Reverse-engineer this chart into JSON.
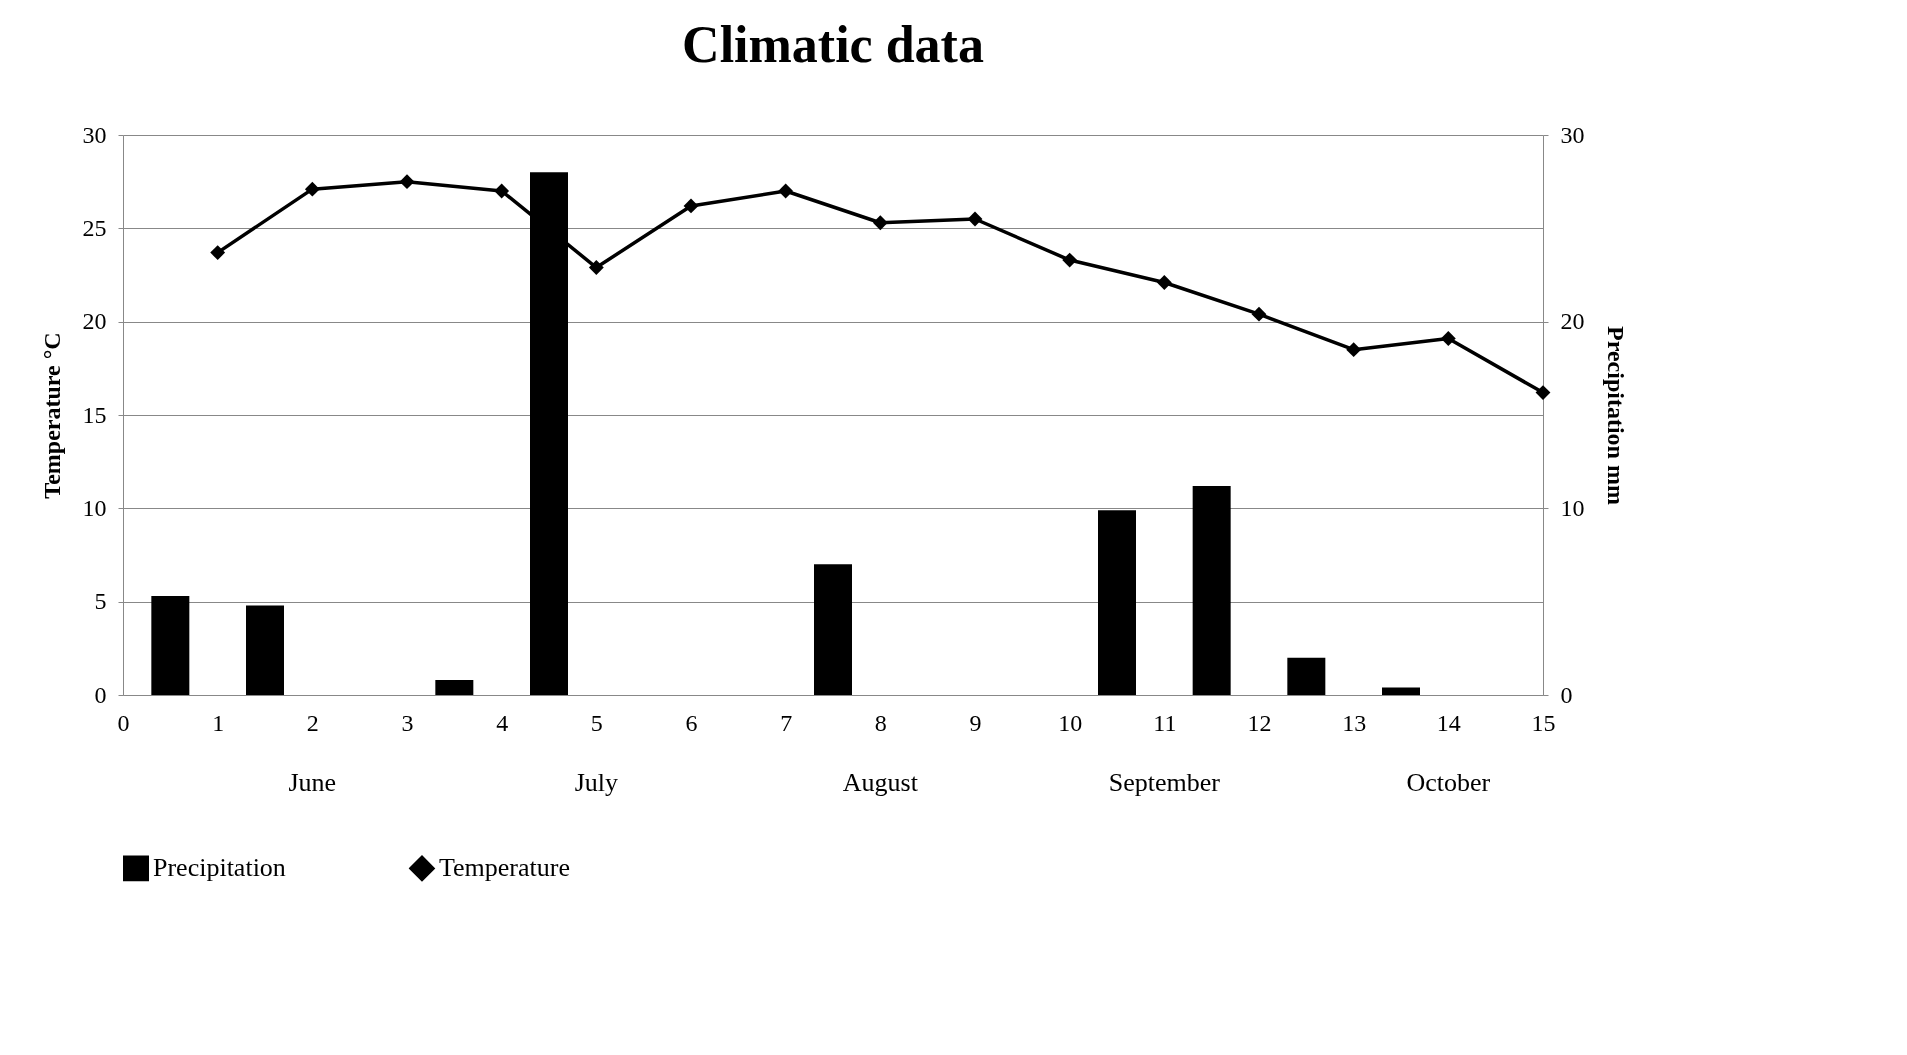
{
  "chart_data": {
    "type": "bar",
    "title": "Climatic data",
    "ylabel": "Temperature °C",
    "y2label": "Precipitation mm",
    "xlim": [
      0,
      15
    ],
    "xticks": [
      0,
      1,
      2,
      3,
      4,
      5,
      6,
      7,
      8,
      9,
      10,
      11,
      12,
      13,
      14,
      15
    ],
    "ylim": [
      0,
      30
    ],
    "yticks": [
      0,
      5,
      10,
      15,
      20,
      25,
      30
    ],
    "y2lim": [
      0,
      30
    ],
    "y2ticks": [
      0,
      10,
      20,
      30
    ],
    "series": [
      {
        "name": "Precipitation",
        "axis": "y2",
        "color": "#000000",
        "x": [
          0.5,
          1.5,
          2.5,
          3.5,
          4.5,
          5.5,
          6.5,
          7.5,
          8.5,
          9.5,
          10.5,
          11.5,
          12.5,
          13.5,
          14.5
        ],
        "values": [
          5.3,
          4.8,
          0,
          0.8,
          28,
          0,
          0,
          7,
          0,
          0,
          9.9,
          11.2,
          2,
          0.4,
          0
        ]
      },
      {
        "name": "Temperature",
        "type": "line",
        "color": "#000000",
        "marker": "diamond",
        "x": [
          1,
          2,
          3,
          4,
          5,
          6,
          7,
          8,
          9,
          10,
          11,
          12,
          13,
          14,
          15
        ],
        "values": [
          23.7,
          27.1,
          27.5,
          27.0,
          22.9,
          26.2,
          27.0,
          25.3,
          25.5,
          23.3,
          22.1,
          20.4,
          18.5,
          19.1,
          16.2
        ]
      }
    ],
    "annotations": [
      "June",
      "July",
      "August",
      "September",
      "October"
    ],
    "grid": "y",
    "legend": "bottom"
  }
}
